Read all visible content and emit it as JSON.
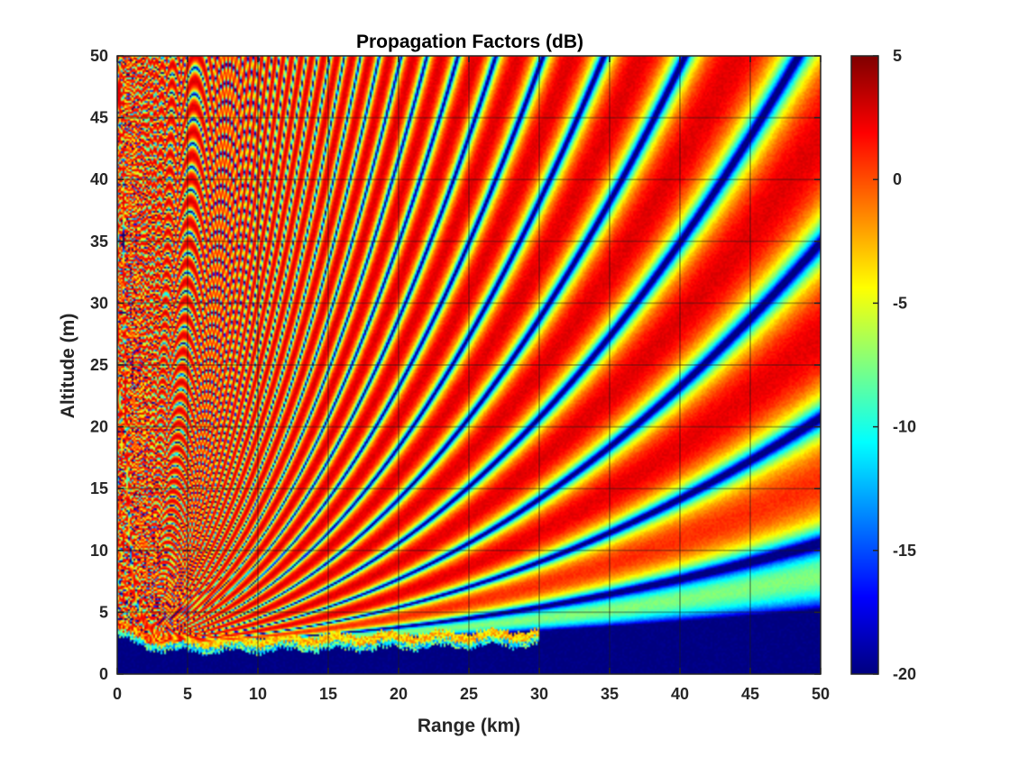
{
  "chart_data": {
    "type": "heatmap",
    "title": "Propagation Factors (dB)",
    "xlabel": "Range (km)",
    "ylabel": "Altitude (m)",
    "xlim": [
      0,
      50
    ],
    "ylim": [
      0,
      50
    ],
    "xticks": [
      0,
      5,
      10,
      15,
      20,
      25,
      30,
      35,
      40,
      45,
      50
    ],
    "yticks": [
      0,
      5,
      10,
      15,
      20,
      25,
      30,
      35,
      40,
      45,
      50
    ],
    "grid": true,
    "colormap": "jet",
    "colorbar": {
      "position": "right",
      "clim": [
        -20,
        5
      ],
      "ticks": [
        -20,
        -15,
        -10,
        -5,
        0,
        5
      ]
    }
  }
}
